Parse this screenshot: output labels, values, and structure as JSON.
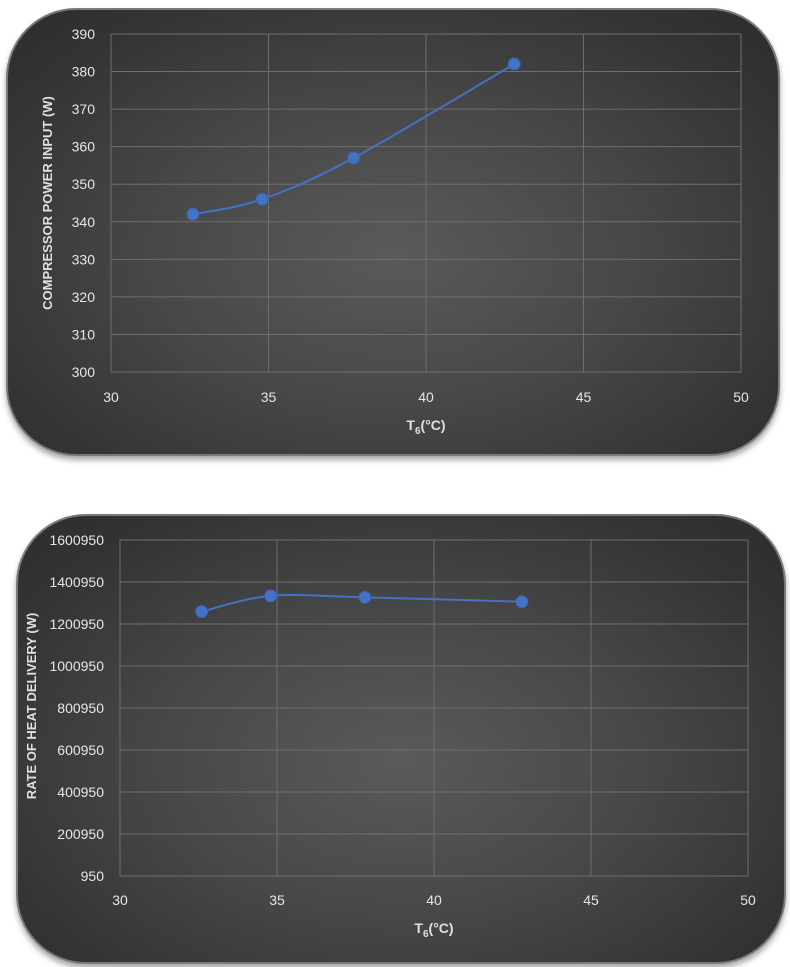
{
  "chart_data": [
    {
      "type": "line",
      "xlabel": "T",
      "xlabel_sub": "6",
      "xlabel_unit": "(°C)",
      "ylabel": "COMPRESSOR POWER INPUT (W)",
      "xlim": [
        30,
        50
      ],
      "ylim": [
        300,
        390
      ],
      "xticks": [
        "30",
        "35",
        "40",
        "45",
        "50"
      ],
      "yticks": [
        "300",
        "310",
        "320",
        "330",
        "340",
        "350",
        "360",
        "370",
        "380",
        "390"
      ],
      "grid": true,
      "series": [
        {
          "x": [
            32.6,
            34.8,
            37.7,
            42.8
          ],
          "y": [
            342,
            346,
            357,
            382
          ]
        }
      ],
      "colors": {
        "line": "#4472c4",
        "marker": "#4472c4"
      }
    },
    {
      "type": "line",
      "xlabel": "T",
      "xlabel_sub": "6",
      "xlabel_unit": "(°C)",
      "ylabel": "RATE OF HEAT DELIVERY (W)",
      "xlim": [
        30,
        50
      ],
      "ylim": [
        950,
        1600950
      ],
      "xticks": [
        "30",
        "35",
        "40",
        "45",
        "50"
      ],
      "yticks": [
        "950",
        "200950",
        "400950",
        "600950",
        "800950",
        "1000950",
        "1200950",
        "1400950",
        "1600950"
      ],
      "grid": true,
      "series": [
        {
          "x": [
            32.6,
            34.8,
            37.8,
            42.8
          ],
          "y": [
            1260000,
            1335000,
            1328000,
            1307000
          ]
        }
      ],
      "colors": {
        "line": "#4472c4",
        "marker": "#4472c4"
      }
    }
  ]
}
